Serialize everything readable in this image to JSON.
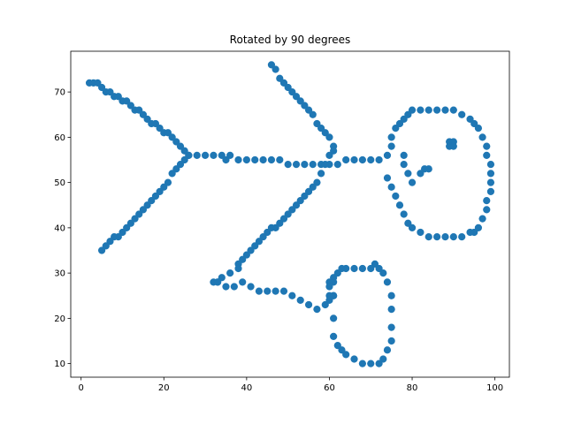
{
  "chart_data": {
    "type": "scatter",
    "title": "Rotated by 90 degrees",
    "xlabel": "",
    "ylabel": "",
    "xlim": [
      -2.5,
      103.5
    ],
    "ylim": [
      7.0,
      79.0
    ],
    "xticks": [
      0,
      20,
      40,
      60,
      80,
      100
    ],
    "yticks": [
      10,
      20,
      30,
      40,
      50,
      60,
      70
    ],
    "grid": false,
    "marker_color": "#1f77b4",
    "series": [
      {
        "x": [
          2,
          3,
          4,
          5,
          6,
          7,
          8,
          9,
          10,
          11,
          12,
          13,
          14,
          15,
          16,
          17,
          18,
          19,
          20,
          21,
          22,
          23,
          24,
          25,
          26,
          26,
          28,
          30,
          32,
          34,
          35,
          36,
          38,
          40,
          42,
          44,
          46,
          48,
          50,
          52,
          54,
          56,
          58,
          60,
          62,
          64,
          66,
          68,
          70,
          72,
          74,
          25,
          24,
          23,
          22,
          21,
          20,
          19,
          18,
          17,
          16,
          15,
          14,
          13,
          12,
          11,
          10,
          9,
          8,
          7,
          6,
          5,
          46,
          47,
          48,
          49,
          50,
          51,
          52,
          53,
          54,
          55,
          56,
          57,
          58,
          59,
          60,
          61,
          61,
          60,
          59,
          58,
          57,
          56,
          55,
          54,
          53,
          52,
          51,
          50,
          49,
          48,
          47,
          46,
          45,
          44,
          43,
          42,
          41,
          40,
          39,
          38,
          38,
          36,
          34,
          33,
          32,
          33,
          35,
          37,
          39,
          41,
          43,
          45,
          47,
          49,
          51,
          53,
          55,
          57,
          59,
          60,
          61,
          75,
          75,
          76,
          77,
          78,
          79,
          80,
          82,
          84,
          86,
          88,
          90,
          92,
          94,
          95,
          96,
          97,
          98,
          98,
          99,
          99,
          99,
          99,
          98,
          98,
          97,
          96,
          95,
          94,
          92,
          90,
          88,
          86,
          84,
          82,
          80,
          79,
          78,
          77,
          76,
          75,
          74,
          89,
          90,
          89,
          90,
          83,
          84,
          82,
          78,
          78,
          79,
          80,
          61,
          61,
          61,
          61,
          62,
          63,
          64,
          66,
          68,
          70,
          72,
          73,
          74,
          75,
          75,
          75,
          75,
          74,
          73,
          72,
          71,
          70,
          68,
          66,
          64,
          63,
          62,
          61,
          60,
          60,
          60
        ],
        "y": [
          72,
          72,
          72,
          71,
          70,
          70,
          69,
          69,
          68,
          68,
          67,
          66,
          66,
          65,
          64,
          63,
          63,
          62,
          61,
          61,
          60,
          59,
          58,
          57,
          56,
          56,
          56,
          56,
          56,
          56,
          55,
          56,
          55,
          55,
          55,
          55,
          55,
          55,
          54,
          54,
          54,
          54,
          54,
          54,
          54,
          55,
          55,
          55,
          55,
          55,
          56,
          55,
          54,
          53,
          52,
          50,
          49,
          48,
          47,
          46,
          45,
          44,
          43,
          42,
          41,
          40,
          39,
          38,
          38,
          37,
          36,
          35,
          76,
          75,
          73,
          72,
          71,
          70,
          69,
          68,
          67,
          66,
          65,
          63,
          62,
          61,
          60,
          58,
          57,
          56,
          54,
          52,
          50,
          49,
          48,
          47,
          46,
          45,
          44,
          43,
          42,
          41,
          40,
          40,
          39,
          38,
          37,
          36,
          35,
          34,
          33,
          32,
          31,
          30,
          29,
          28,
          28,
          28,
          27,
          27,
          28,
          27,
          26,
          26,
          26,
          26,
          25,
          24,
          23,
          22,
          23,
          24,
          25,
          60,
          58,
          62,
          63,
          64,
          65,
          66,
          66,
          66,
          66,
          66,
          66,
          65,
          64,
          63,
          62,
          60,
          58,
          56,
          54,
          52,
          50,
          48,
          46,
          44,
          42,
          40,
          39,
          39,
          38,
          38,
          38,
          38,
          38,
          39,
          40,
          41,
          43,
          45,
          47,
          49,
          51,
          59,
          59,
          58,
          58,
          53,
          53,
          52,
          56,
          54,
          52,
          50,
          28,
          25,
          20,
          16,
          14,
          13,
          12,
          11,
          10,
          10,
          10,
          11,
          13,
          15,
          18,
          22,
          25,
          28,
          30,
          31,
          32,
          31,
          31,
          31,
          31,
          31,
          30,
          29,
          28,
          27,
          25
        ],
        "marker_size": 7
      }
    ]
  }
}
